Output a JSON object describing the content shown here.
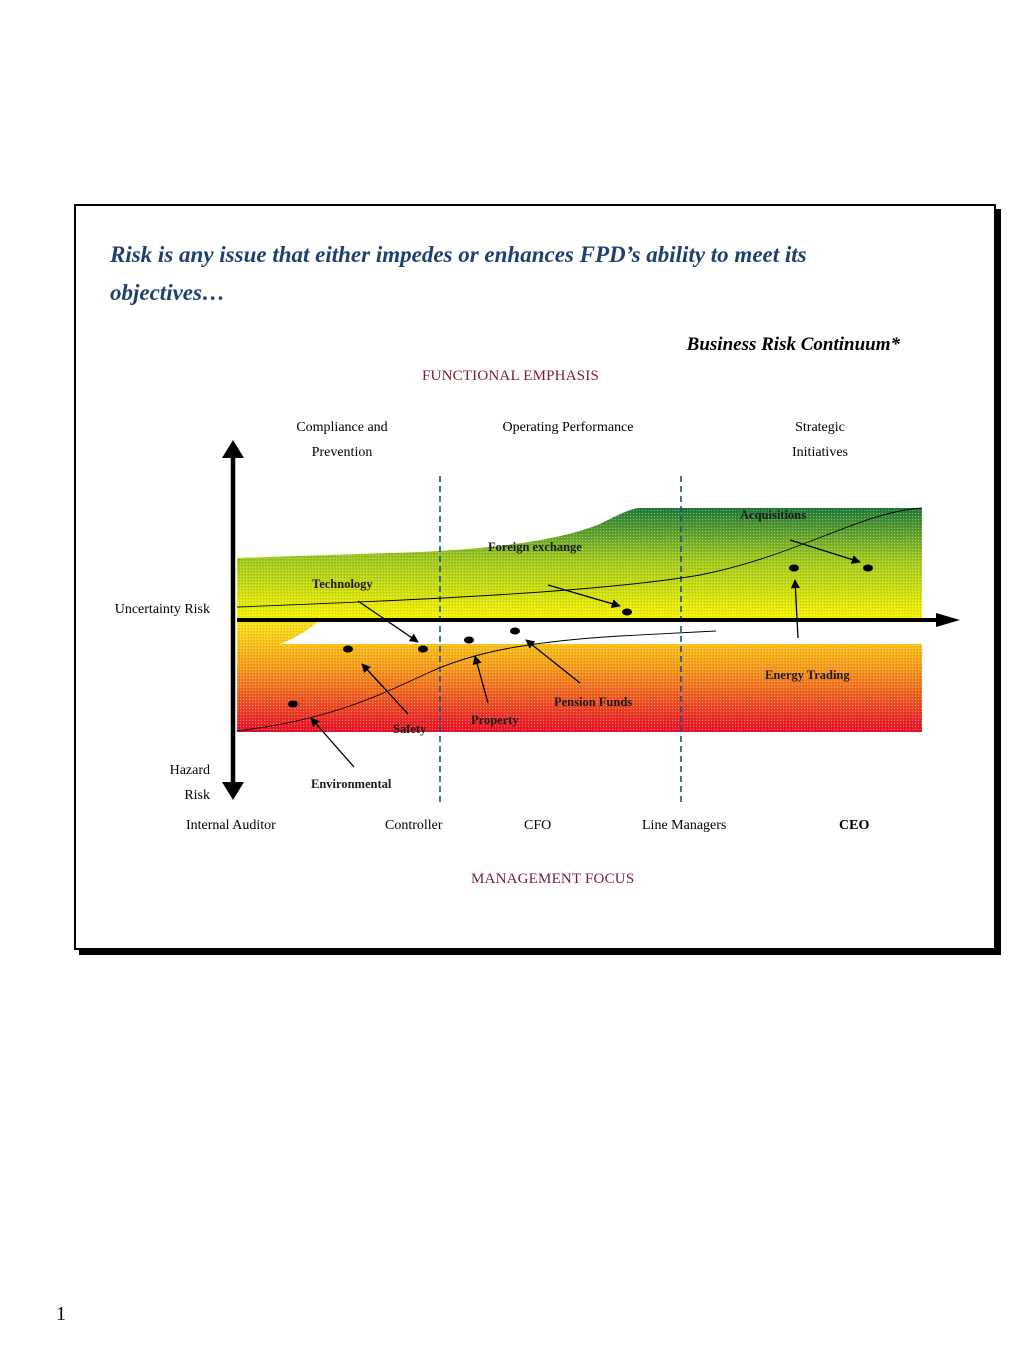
{
  "slide": {
    "headline": "Risk is any issue that either impedes or enhances FPD’s ability to meet its objectives…",
    "subtitle": "Business Risk Continuum*",
    "page_number": "1"
  },
  "diagram": {
    "top_heading": "FUNCTIONAL EMPHASIS",
    "bottom_heading": "MANAGEMENT FOCUS",
    "columns": [
      "Compliance and\nPrevention",
      "Operating Performance",
      "Strategic\nInitiatives"
    ],
    "vertical_axis": {
      "upper_label": "Uncertainty Risk",
      "lower_label": "Hazard\nRisk"
    },
    "roles": [
      "Internal Auditor",
      "Controller",
      "CFO",
      "Line Managers",
      "CEO"
    ],
    "risks": {
      "acquisitions": "Acquisitions",
      "foreign_exchange": "Foreign exchange",
      "technology": "Technology",
      "energy_trading": "Energy Trading",
      "pension_funds": "Pension Funds",
      "property": "Property",
      "safety": "Safety",
      "environmental": "Environmental"
    },
    "colors": {
      "band_green": "#1f7a3a",
      "band_yellow": "#f5f200",
      "band_orange": "#f7a01a",
      "band_red": "#e8102a",
      "divider": "#1f4e8c",
      "heading": "#7b1c2b"
    }
  }
}
